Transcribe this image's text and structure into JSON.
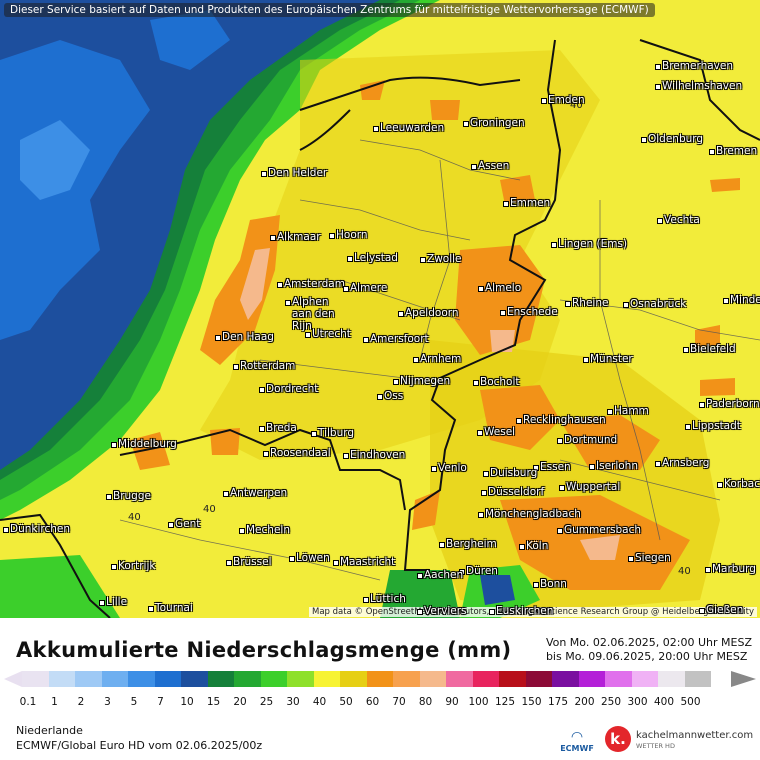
{
  "banner": "Dieser Service basiert auf Daten und Produkten des Europäischen Zentrums für mittelfristige Wettervorhersage (ECMWF)",
  "attribution": "Map data © OpenStreetMap contributors, rendering GIScience Research Group @ Heidelberg University",
  "cities": [
    {
      "name": "Bremerhaven"
    },
    {
      "name": "Wilhelmshaven"
    },
    {
      "name": "Emden"
    },
    {
      "name": "Leeuwarden"
    },
    {
      "name": "Groningen"
    },
    {
      "name": "Oldenburg"
    },
    {
      "name": "Bremen"
    },
    {
      "name": "Den Helder"
    },
    {
      "name": "Assen"
    },
    {
      "name": "Emmen"
    },
    {
      "name": "Vechta"
    },
    {
      "name": "Alkmaar"
    },
    {
      "name": "Hoorn"
    },
    {
      "name": "Lelystad"
    },
    {
      "name": "Zwolle"
    },
    {
      "name": "Lingen (Ems)"
    },
    {
      "name": "Amsterdam"
    },
    {
      "name": "Almere"
    },
    {
      "name": "Almelo"
    },
    {
      "name": "Alphen aan den Rijn"
    },
    {
      "name": "Apeldoorn"
    },
    {
      "name": "Enschede"
    },
    {
      "name": "Rheine"
    },
    {
      "name": "Osnabrück"
    },
    {
      "name": "Minden"
    },
    {
      "name": "Den Haag"
    },
    {
      "name": "Utrecht"
    },
    {
      "name": "Amersfoort"
    },
    {
      "name": "Bielefeld"
    },
    {
      "name": "Arnhem"
    },
    {
      "name": "Rotterdam"
    },
    {
      "name": "Münster"
    },
    {
      "name": "Nijmegen"
    },
    {
      "name": "Dordrecht"
    },
    {
      "name": "Bocholt"
    },
    {
      "name": "Oss"
    },
    {
      "name": "Paderborn"
    },
    {
      "name": "Hamm"
    },
    {
      "name": "Recklinghausen"
    },
    {
      "name": "Breda"
    },
    {
      "name": "Tilburg"
    },
    {
      "name": "Lippstadt"
    },
    {
      "name": "Wesel"
    },
    {
      "name": "Middelburg"
    },
    {
      "name": "Roosendaal"
    },
    {
      "name": "Dortmund"
    },
    {
      "name": "Eindhoven"
    },
    {
      "name": "Arnsberg"
    },
    {
      "name": "Iserlohn"
    },
    {
      "name": "Essen"
    },
    {
      "name": "Venlo"
    },
    {
      "name": "Duisburg"
    },
    {
      "name": "Korbach"
    },
    {
      "name": "Wuppertal"
    },
    {
      "name": "Brugge"
    },
    {
      "name": "Antwerpen"
    },
    {
      "name": "Düsseldorf"
    },
    {
      "name": "Mönchengladbach"
    },
    {
      "name": "Dünkirchen"
    },
    {
      "name": "Gent"
    },
    {
      "name": "Mecheln"
    },
    {
      "name": "Gummersbach"
    },
    {
      "name": "Bergheim"
    },
    {
      "name": "Köln"
    },
    {
      "name": "Kortrijk"
    },
    {
      "name": "Brüssel"
    },
    {
      "name": "Löwen"
    },
    {
      "name": "Maastricht"
    },
    {
      "name": "Siegen"
    },
    {
      "name": "Düren"
    },
    {
      "name": "Marburg"
    },
    {
      "name": "Aachen"
    },
    {
      "name": "Bonn"
    },
    {
      "name": "Lille"
    },
    {
      "name": "Lüttich"
    },
    {
      "name": "Tournai"
    },
    {
      "name": "Gießen"
    },
    {
      "name": "Euskirchen"
    },
    {
      "name": "Verviers"
    }
  ],
  "contour_label": "40",
  "legend": {
    "title": "Akkumulierte Niederschlagsmenge (mm)",
    "period_from": "Von Mo. 02.06.2025, 02:00 Uhr MESZ",
    "period_to": "bis Mo. 09.06.2025, 20:00 Uhr MESZ",
    "ticks": [
      "0.1",
      "1",
      "2",
      "3",
      "5",
      "7",
      "10",
      "15",
      "20",
      "25",
      "30",
      "40",
      "50",
      "60",
      "70",
      "80",
      "90",
      "100",
      "125",
      "150",
      "175",
      "200",
      "250",
      "300",
      "400",
      "500"
    ],
    "colors": [
      "#e9e3f1",
      "#c3dcf6",
      "#9ec9f5",
      "#6eaff0",
      "#3d8fe6",
      "#1e6fd0",
      "#1d4f9e",
      "#15803a",
      "#24a832",
      "#3ccf2b",
      "#8ee02a",
      "#f7f334",
      "#e6cf14",
      "#f29218",
      "#f7a14e",
      "#f5b98c",
      "#f06aa0",
      "#e8245e",
      "#b80f1a",
      "#8c0a36",
      "#7a0fa0",
      "#b41fd8",
      "#e070ec",
      "#f0b2f5",
      "#ece8ee",
      "#c2c2c2"
    ],
    "region": "Niederlande",
    "model": "ECMWF/Global Euro HD vom  02.06.2025/00z",
    "ecmwf": "ECMWF",
    "brand": "kachelmannwetter.com",
    "brand_sub": "WETTER HD",
    "brand_mark": "k."
  }
}
